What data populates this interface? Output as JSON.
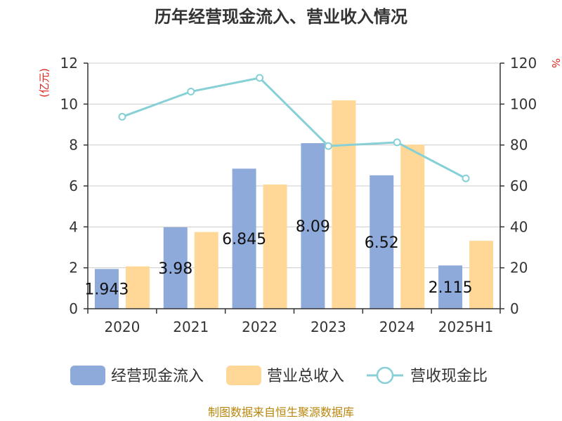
{
  "chart_data": {
    "type": "bar",
    "title": "历年经营现金流入、营业收入情况",
    "categories": [
      "2020",
      "2021",
      "2022",
      "2023",
      "2024",
      "2025H1"
    ],
    "y_left": {
      "unit_label": "(亿元)",
      "ylim": [
        0,
        12
      ],
      "ticks": [
        "0",
        "2",
        "4",
        "6",
        "8",
        "10",
        "12"
      ]
    },
    "y_right": {
      "unit_label": "%",
      "ylim": [
        0,
        120
      ],
      "ticks": [
        "0",
        "20",
        "40",
        "60",
        "80",
        "100",
        "120"
      ]
    },
    "grid": true,
    "legend_position": "bottom",
    "series": [
      {
        "name": "经营现金流入",
        "type": "bar",
        "axis": "left",
        "color": "#8eaadb",
        "values": [
          1.943,
          3.98,
          6.845,
          8.09,
          6.52,
          2.115
        ],
        "labels": [
          "1.943",
          "3.98",
          "6.845",
          "8.09",
          "6.52",
          "2.115"
        ]
      },
      {
        "name": "营业总收入",
        "type": "bar",
        "axis": "left",
        "color": "#ffd898",
        "values": [
          2.07,
          3.75,
          6.07,
          10.18,
          8.02,
          3.32
        ]
      },
      {
        "name": "营收现金比",
        "type": "line",
        "axis": "right",
        "color": "#86d0d6",
        "values": [
          93.8,
          106.1,
          112.8,
          79.5,
          81.3,
          63.7
        ]
      }
    ]
  },
  "source_note": "制图数据来自恒生聚源数据库"
}
